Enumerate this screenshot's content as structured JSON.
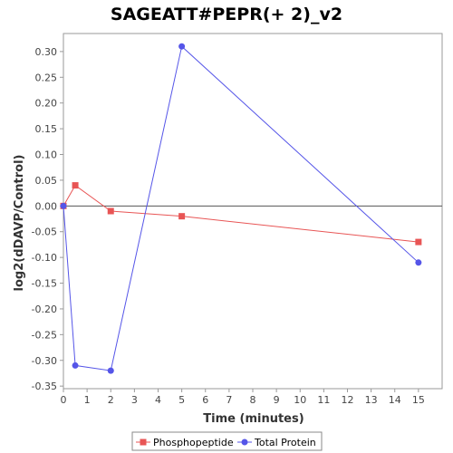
{
  "chart_data": {
    "type": "line",
    "title": "SAGEATT#PEPR(+ 2)_v2",
    "xlabel": "Time (minutes)",
    "ylabel": "log2(dDAVP/Control)",
    "xlim": [
      0,
      16
    ],
    "ylim": [
      -0.355,
      0.335
    ],
    "xticks": [
      0,
      1,
      2,
      3,
      4,
      5,
      6,
      7,
      8,
      9,
      10,
      11,
      12,
      13,
      14,
      15
    ],
    "yticks": [
      -0.35,
      -0.3,
      -0.25,
      -0.2,
      -0.15,
      -0.1,
      -0.05,
      0.0,
      0.05,
      0.1,
      0.15,
      0.2,
      0.25,
      0.3
    ],
    "xtick_labels": [
      "0",
      "1",
      "2",
      "3",
      "4",
      "5",
      "6",
      "7",
      "8",
      "9",
      "10",
      "11",
      "12",
      "13",
      "14",
      "15"
    ],
    "ytick_labels": [
      "-0.35",
      "-0.30",
      "-0.25",
      "-0.20",
      "-0.15",
      "-0.10",
      "-0.05",
      "0.00",
      "0.05",
      "0.10",
      "0.15",
      "0.20",
      "0.25",
      "0.30"
    ],
    "zero_line": true,
    "grid": false,
    "legend_position": "bottom",
    "series": [
      {
        "name": "Phosphopeptide",
        "color": "#e85555",
        "marker": "square",
        "x": [
          0,
          0.5,
          2,
          5,
          15
        ],
        "y": [
          0.0,
          0.04,
          -0.01,
          -0.02,
          -0.07
        ]
      },
      {
        "name": "Total Protein",
        "color": "#5555e8",
        "marker": "circle",
        "x": [
          0,
          0.5,
          2,
          5,
          15
        ],
        "y": [
          0.0,
          -0.31,
          -0.32,
          0.31,
          -0.11
        ]
      }
    ]
  }
}
